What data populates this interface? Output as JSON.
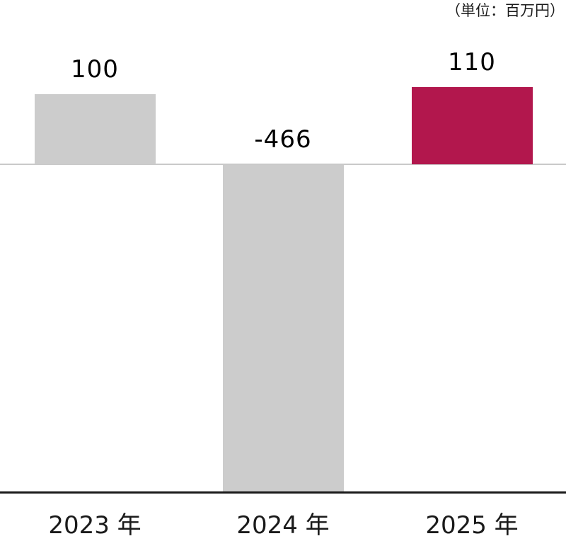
{
  "chart_data": {
    "type": "bar",
    "title": "",
    "unit_label": "（単位：百万円）",
    "categories": [
      "2023 年",
      "2024 年",
      "2025 年"
    ],
    "values": [
      100,
      -466,
      110
    ],
    "value_labels": [
      "100",
      "-466",
      "110"
    ],
    "bar_colors": [
      "#cccccc",
      "#cccccc",
      "#b2174d"
    ],
    "ylim": [
      -466,
      110
    ],
    "baseline": 0,
    "grid": false,
    "legend": false,
    "xlabel": "",
    "ylabel": ""
  },
  "colors": {
    "bar_gray": "#cccccc",
    "bar_accent": "#b2174d",
    "zero_line": "#c9c9c9",
    "axis_line": "#1a1a1a",
    "text": "#000000",
    "background": "#ffffff"
  }
}
